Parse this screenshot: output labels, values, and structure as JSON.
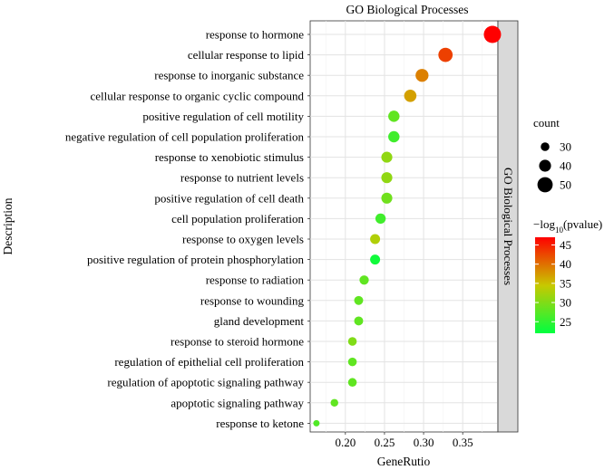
{
  "chart_data": {
    "type": "scatter",
    "title": "GO Biological Processes",
    "facet_label": "GO Biological Processes",
    "xlabel": "GeneRutio",
    "ylabel": "Description",
    "xlim": [
      0.155,
      0.395
    ],
    "x_ticks": [
      0.2,
      0.25,
      0.3,
      0.35
    ],
    "x_tick_labels": [
      "0.20",
      "0.25",
      "0.30",
      "0.35"
    ],
    "grid": true,
    "points": [
      {
        "term": "response to hormone",
        "gene_ratio": 0.388,
        "count": 56,
        "neg_log10_pvalue": 47
      },
      {
        "term": "cellular response to lipid",
        "gene_ratio": 0.328,
        "count": 47,
        "neg_log10_pvalue": 43
      },
      {
        "term": "response to inorganic substance",
        "gene_ratio": 0.298,
        "count": 43,
        "neg_log10_pvalue": 39
      },
      {
        "term": "cellular response to organic cyclic compound",
        "gene_ratio": 0.283,
        "count": 41,
        "neg_log10_pvalue": 37
      },
      {
        "term": "positive regulation of cell motility",
        "gene_ratio": 0.262,
        "count": 38,
        "neg_log10_pvalue": 28
      },
      {
        "term": "negative regulation of cell population proliferation",
        "gene_ratio": 0.262,
        "count": 38,
        "neg_log10_pvalue": 26
      },
      {
        "term": "response to xenobiotic stimulus",
        "gene_ratio": 0.253,
        "count": 37,
        "neg_log10_pvalue": 31
      },
      {
        "term": "response to nutrient levels",
        "gene_ratio": 0.253,
        "count": 37,
        "neg_log10_pvalue": 31
      },
      {
        "term": "positive regulation of cell death",
        "gene_ratio": 0.253,
        "count": 37,
        "neg_log10_pvalue": 29
      },
      {
        "term": "cell population proliferation",
        "gene_ratio": 0.245,
        "count": 35,
        "neg_log10_pvalue": 26
      },
      {
        "term": "response to oxygen levels",
        "gene_ratio": 0.238,
        "count": 34,
        "neg_log10_pvalue": 33
      },
      {
        "term": "positive regulation of protein phosphorylation",
        "gene_ratio": 0.238,
        "count": 34,
        "neg_log10_pvalue": 23
      },
      {
        "term": "response to radiation",
        "gene_ratio": 0.224,
        "count": 32,
        "neg_log10_pvalue": 28
      },
      {
        "term": "response to wounding",
        "gene_ratio": 0.217,
        "count": 31,
        "neg_log10_pvalue": 28
      },
      {
        "term": "gland development",
        "gene_ratio": 0.217,
        "count": 31,
        "neg_log10_pvalue": 28
      },
      {
        "term": "response to steroid hormone",
        "gene_ratio": 0.209,
        "count": 30,
        "neg_log10_pvalue": 30
      },
      {
        "term": "regulation of epithelial cell proliferation",
        "gene_ratio": 0.209,
        "count": 30,
        "neg_log10_pvalue": 28
      },
      {
        "term": "regulation of apoptotic signaling pathway",
        "gene_ratio": 0.209,
        "count": 30,
        "neg_log10_pvalue": 28
      },
      {
        "term": "apoptotic signaling pathway",
        "gene_ratio": 0.186,
        "count": 27,
        "neg_log10_pvalue": 28
      },
      {
        "term": "response to ketone",
        "gene_ratio": 0.163,
        "count": 23,
        "neg_log10_pvalue": 27
      }
    ],
    "size_legend": {
      "title": "count",
      "values": [
        30,
        40,
        50
      ],
      "labels": [
        "30",
        "40",
        "50"
      ]
    },
    "color_legend": {
      "title_prefix": "−log",
      "title_subscript": "10",
      "title_suffix": "(pvalue)",
      "range": [
        22,
        47
      ],
      "ticks": [
        25,
        30,
        35,
        40,
        45
      ],
      "tick_labels": [
        "25",
        "30",
        "35",
        "40",
        "45"
      ],
      "colors": [
        "#00ff40",
        "#c8c800",
        "#ff0000"
      ]
    }
  }
}
